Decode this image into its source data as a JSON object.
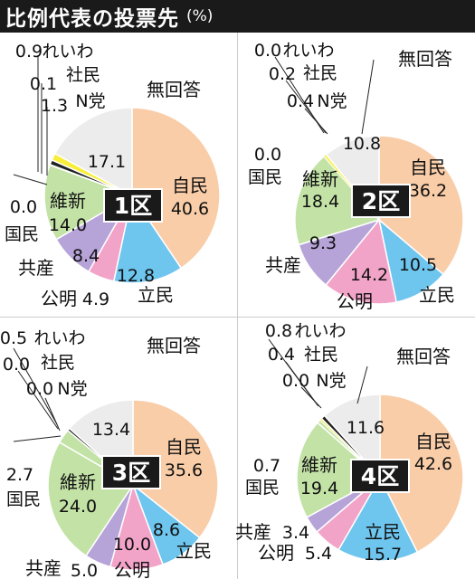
{
  "title": "比例代表の投票先",
  "unit": "(%)",
  "chart_data": [
    {
      "type": "pie",
      "district": "1区",
      "categories": [
        "自民",
        "立民",
        "公明",
        "共産",
        "維新",
        "国民",
        "社民",
        "れいわ",
        "N党",
        "無回答"
      ],
      "values": [
        40.6,
        12.8,
        4.9,
        8.4,
        14.0,
        0.0,
        0.1,
        0.9,
        1.3,
        17.1
      ]
    },
    {
      "type": "pie",
      "district": "2区",
      "categories": [
        "自民",
        "立民",
        "公明",
        "共産",
        "維新",
        "国民",
        "社民",
        "れいわ",
        "N党",
        "無回答"
      ],
      "values": [
        36.2,
        10.5,
        14.2,
        9.3,
        18.4,
        0.0,
        0.2,
        0.0,
        0.4,
        10.8
      ]
    },
    {
      "type": "pie",
      "district": "3区",
      "categories": [
        "自民",
        "立民",
        "公明",
        "共産",
        "維新",
        "国民",
        "社民",
        "れいわ",
        "N党",
        "無回答"
      ],
      "values": [
        35.6,
        8.6,
        10.0,
        5.0,
        24.0,
        2.7,
        0.0,
        0.5,
        0.0,
        13.4
      ]
    },
    {
      "type": "pie",
      "district": "4区",
      "categories": [
        "自民",
        "立民",
        "公明",
        "共産",
        "維新",
        "国民",
        "社民",
        "れいわ",
        "N党",
        "無回答"
      ],
      "values": [
        42.6,
        15.7,
        5.4,
        3.4,
        19.4,
        0.7,
        0.4,
        0.8,
        0.0,
        11.6
      ]
    }
  ],
  "colors": {
    "自民": "#f9cda8",
    "立民": "#6ec5ee",
    "公明": "#f2a3c8",
    "共産": "#b6a3d8",
    "維新": "#c3e2a6",
    "国民": "#c3e2a6",
    "社民": "#f1ec6c",
    "れいわ": "#222222",
    "N党": "#f8ee3a",
    "無回答": "#ececec"
  }
}
